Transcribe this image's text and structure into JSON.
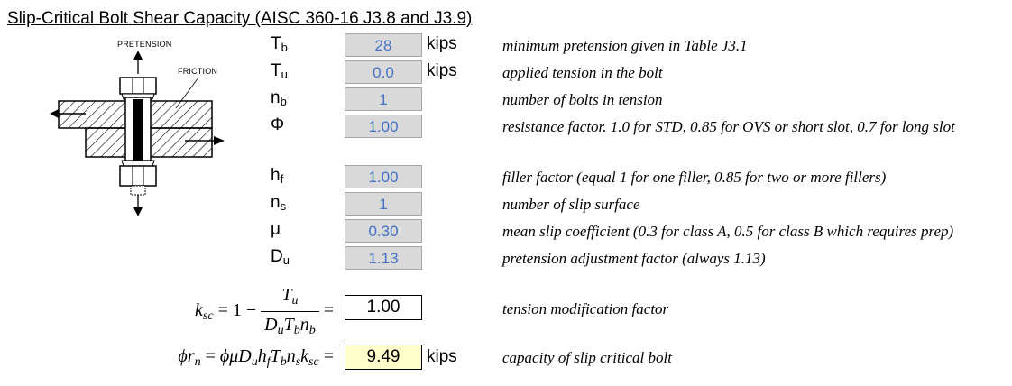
{
  "title": "Slip-Critical Bolt Shear Capacity (AISC 360-16 J3.8 and J3.9)",
  "diagram": {
    "pretension_label": "PRETENSION",
    "friction_label": "FRICTION"
  },
  "inputs": [
    {
      "sym": "T",
      "sub": "b",
      "value": "28",
      "unit": "kips",
      "desc": "minimum pretension given in Table J3.1"
    },
    {
      "sym": "T",
      "sub": "u",
      "value": "0.0",
      "unit": "kips",
      "desc": "applied tension in the bolt"
    },
    {
      "sym": "n",
      "sub": "b",
      "value": "1",
      "unit": "",
      "desc": "number of bolts in tension"
    },
    {
      "sym": "Φ",
      "sub": "",
      "value": "1.00",
      "unit": "",
      "desc": "resistance factor. 1.0 for STD, 0.85 for OVS or short slot, 0.7 for long slot"
    },
    {
      "sym": "h",
      "sub": "f",
      "value": "1.00",
      "unit": "",
      "desc": "filler factor (equal 1 for one filler, 0.85 for two or more fillers)"
    },
    {
      "sym": "n",
      "sub": "s",
      "value": "1",
      "unit": "",
      "desc": "number of slip surface"
    },
    {
      "sym": "μ",
      "sub": "",
      "value": "0.30",
      "unit": "",
      "desc": "mean slip coefficient (0.3 for class A, 0.5 for class B which requires prep)"
    },
    {
      "sym": "D",
      "sub": "u",
      "value": "1.13",
      "unit": "",
      "desc": "pretension adjustment factor (always 1.13)"
    }
  ],
  "ksc": {
    "value": "1.00",
    "desc": "tension modification factor"
  },
  "capacity": {
    "value": "9.49",
    "unit": "kips",
    "desc": "capacity of slip critical bolt",
    "highlight": "#ffffcc"
  }
}
